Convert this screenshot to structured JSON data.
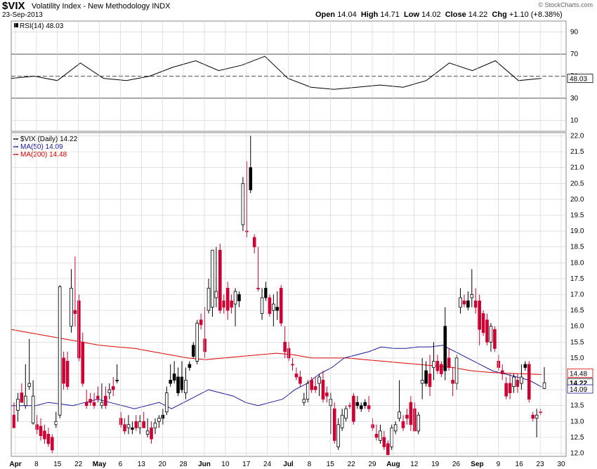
{
  "header": {
    "symbol": "$VIX",
    "name": "Volatility Index - New Methodology",
    "exchange": "INDX",
    "date": "23-Sep-2013",
    "credit": "© StockCharts.com",
    "open_label": "Open",
    "open": "14.04",
    "high_label": "High",
    "high": "14.71",
    "low_label": "Low",
    "low": "14.02",
    "close_label": "Close",
    "close": "14.22",
    "chg_label": "Chg",
    "chg": "+1.10 (+8.38%)"
  },
  "colors": {
    "up": "#ffffff",
    "down": "#cc0033",
    "black": "#000000",
    "ma50": "#1a1a99",
    "ma200": "#dd0000",
    "grid": "#cfcfcf",
    "ob_line": "#555555"
  },
  "chart_data": [
    {
      "type": "line",
      "title": "RSI(14) 48.03",
      "y_ticks": [
        10,
        30,
        50,
        70,
        90
      ],
      "ylim": [
        0,
        100
      ],
      "reference_lines": [
        30,
        50,
        70
      ],
      "last_value_label": "48.03",
      "x": [
        "2013-04-01",
        "2013-04-08",
        "2013-04-15",
        "2013-04-22",
        "2013-05-06",
        "2013-05-13",
        "2013-05-20",
        "2013-05-28",
        "2013-06-03",
        "2013-06-10",
        "2013-06-17",
        "2013-06-24",
        "2013-07-08",
        "2013-07-15",
        "2013-07-22",
        "2013-07-29",
        "2013-08-05",
        "2013-08-12",
        "2013-08-19",
        "2013-08-26",
        "2013-09-03",
        "2013-09-09",
        "2013-09-16",
        "2013-09-23"
      ],
      "series": [
        {
          "values": [
            48,
            50,
            46,
            62,
            48,
            46,
            50,
            58,
            64,
            55,
            60,
            68,
            48,
            40,
            38,
            40,
            42,
            40,
            46,
            62,
            55,
            64,
            46,
            48
          ]
        }
      ]
    },
    {
      "type": "candlestick",
      "legend": [
        {
          "label": "$VIX (Daily) 14.22",
          "color": "#000000"
        },
        {
          "label": "MA(50) 14.09",
          "color": "#1a1a99"
        },
        {
          "label": "MA(200) 14.48",
          "color": "#dd0000"
        }
      ],
      "ylim": [
        11.9,
        22.1
      ],
      "y_ticks": [
        12.0,
        12.5,
        13.0,
        13.5,
        14.0,
        14.5,
        15.0,
        15.5,
        16.0,
        16.5,
        17.0,
        17.5,
        18.0,
        18.5,
        19.0,
        19.5,
        20.0,
        20.5,
        21.0,
        21.5,
        22.0
      ],
      "price_labels": [
        {
          "text": "14.48",
          "value": 14.48,
          "color": "#dd0000"
        },
        {
          "text": "14.22",
          "value": 14.22,
          "color": "#000000"
        },
        {
          "text": "14.09",
          "value": 14.09,
          "color": "#1a1a99"
        }
      ],
      "x_axis_labels": [
        "Apr",
        "8",
        "15",
        "22",
        "May",
        "6",
        "13",
        "20",
        "28",
        "Jun",
        "10",
        "17",
        "24",
        "Jul",
        "8",
        "15",
        "22",
        "29",
        "Aug",
        "12",
        "19",
        "26",
        "Sep",
        "9",
        "16",
        "23",
        "30"
      ],
      "x_axis_bold": [
        "Apr",
        "May",
        "Jun",
        "Jul",
        "Aug",
        "Sep"
      ],
      "ohlc": [
        [
          13.2,
          13.6,
          12.9,
          12.8,
          "d"
        ],
        [
          13.35,
          13.9,
          13.0,
          13.7,
          "u"
        ],
        [
          13.9,
          14.2,
          13.6,
          13.6,
          "d"
        ],
        [
          13.5,
          14.8,
          13.4,
          13.8,
          "u"
        ],
        [
          14.1,
          15.6,
          14.0,
          14.2,
          "u"
        ],
        [
          12.95,
          14.3,
          12.9,
          13.8,
          "u"
        ],
        [
          12.9,
          13.2,
          12.6,
          12.75,
          "d"
        ],
        [
          12.85,
          13.1,
          12.4,
          12.55,
          "d"
        ],
        [
          12.7,
          12.9,
          12.3,
          12.45,
          "d"
        ],
        [
          12.6,
          12.8,
          12.2,
          12.3,
          "d"
        ],
        [
          12.5,
          12.6,
          12.0,
          12.1,
          "d"
        ],
        [
          12.9,
          13.3,
          12.8,
          13.0,
          "u"
        ],
        [
          13.2,
          17.3,
          13.1,
          17.25,
          "u"
        ],
        [
          15.0,
          15.2,
          14.0,
          14.2,
          "d"
        ],
        [
          14.9,
          15.2,
          14.0,
          14.1,
          "d"
        ],
        [
          16.0,
          17.8,
          15.8,
          17.2,
          "u"
        ],
        [
          16.5,
          18.2,
          16.0,
          16.4,
          "d"
        ],
        [
          16.8,
          17.0,
          14.9,
          15.0,
          "d"
        ],
        [
          15.5,
          15.8,
          14.1,
          14.2,
          "d"
        ],
        [
          13.6,
          14.0,
          13.4,
          13.5,
          "d"
        ],
        [
          13.7,
          13.9,
          13.5,
          13.6,
          "d"
        ],
        [
          13.6,
          13.9,
          13.4,
          13.5,
          "d"
        ],
        [
          13.8,
          14.1,
          13.6,
          13.7,
          "d"
        ],
        [
          13.5,
          14.2,
          13.4,
          13.6,
          "u"
        ],
        [
          13.8,
          14.1,
          13.4,
          13.5,
          "d"
        ],
        [
          13.9,
          14.2,
          13.7,
          14.0,
          "u"
        ],
        [
          14.0,
          14.4,
          13.8,
          14.1,
          "d"
        ],
        [
          14.3,
          14.8,
          14.2,
          14.3,
          "b"
        ],
        [
          13.1,
          13.3,
          12.8,
          12.9,
          "d"
        ],
        [
          12.9,
          13.1,
          12.6,
          12.7,
          "d"
        ],
        [
          12.9,
          13.2,
          12.6,
          12.8,
          "u"
        ],
        [
          12.8,
          13.0,
          12.6,
          12.75,
          "b"
        ],
        [
          13.0,
          13.2,
          12.7,
          12.8,
          "d"
        ],
        [
          12.8,
          13.2,
          12.6,
          13.0,
          "u"
        ],
        [
          13.0,
          13.3,
          12.8,
          12.8,
          "d"
        ],
        [
          12.6,
          13.1,
          12.5,
          12.7,
          "u"
        ],
        [
          12.8,
          13.0,
          12.3,
          12.45,
          "d"
        ],
        [
          12.8,
          13.1,
          12.6,
          12.95,
          "u"
        ],
        [
          13.0,
          13.2,
          12.8,
          13.1,
          "u"
        ],
        [
          13.1,
          13.4,
          12.9,
          13.2,
          "b"
        ],
        [
          13.3,
          14.1,
          13.2,
          13.9,
          "u"
        ],
        [
          14.3,
          14.8,
          14.1,
          14.2,
          "b"
        ],
        [
          14.5,
          14.9,
          14.2,
          14.3,
          "b"
        ],
        [
          14.4,
          14.7,
          13.8,
          13.9,
          "b"
        ],
        [
          14.4,
          14.9,
          13.9,
          14.0,
          "b"
        ],
        [
          14.3,
          14.7,
          13.7,
          13.9,
          "u"
        ],
        [
          14.8,
          14.9,
          14.6,
          14.7,
          "b"
        ],
        [
          15.4,
          15.5,
          15.0,
          15.05,
          "b"
        ],
        [
          14.9,
          16.2,
          14.8,
          16.1,
          "u"
        ],
        [
          16.2,
          16.4,
          15.9,
          16.05,
          "d"
        ],
        [
          15.6,
          16.6,
          15.0,
          15.2,
          "d"
        ],
        [
          16.5,
          17.5,
          16.4,
          17.2,
          "u"
        ],
        [
          16.6,
          18.4,
          16.3,
          18.4,
          "u"
        ],
        [
          16.9,
          18.5,
          16.6,
          17.1,
          "u"
        ],
        [
          18.4,
          18.6,
          16.4,
          16.5,
          "d"
        ],
        [
          16.8,
          17.0,
          16.4,
          16.6,
          "d"
        ],
        [
          17.2,
          17.4,
          16.2,
          16.5,
          "d"
        ],
        [
          16.8,
          17.0,
          16.4,
          16.6,
          "d"
        ],
        [
          17.1,
          17.2,
          16.0,
          16.7,
          "u"
        ],
        [
          17.0,
          17.1,
          16.6,
          16.8,
          "b"
        ],
        [
          19.2,
          20.7,
          19.0,
          20.5,
          "u"
        ],
        [
          19.0,
          21.2,
          18.8,
          19.0,
          "d"
        ],
        [
          21.0,
          22.0,
          20.2,
          20.3,
          "b"
        ],
        [
          18.8,
          18.9,
          18.3,
          18.5,
          "d"
        ],
        [
          17.2,
          18.5,
          17.1,
          17.2,
          "d"
        ],
        [
          16.4,
          17.2,
          16.2,
          16.9,
          "u"
        ],
        [
          17.2,
          17.4,
          16.8,
          16.9,
          "b"
        ],
        [
          16.9,
          17.0,
          16.3,
          16.4,
          "d"
        ],
        [
          16.5,
          17.0,
          16.0,
          16.7,
          "u"
        ],
        [
          16.6,
          17.1,
          16.2,
          16.5,
          "b"
        ],
        [
          17.2,
          17.3,
          16.0,
          16.1,
          "d"
        ],
        [
          15.5,
          16.0,
          15.0,
          15.2,
          "d"
        ],
        [
          15.3,
          15.5,
          14.9,
          15.0,
          "d"
        ],
        [
          14.8,
          15.0,
          14.6,
          14.8,
          "d"
        ],
        [
          14.5,
          14.7,
          14.3,
          14.4,
          "d"
        ],
        [
          14.4,
          14.6,
          14.1,
          14.2,
          "d"
        ],
        [
          13.7,
          13.9,
          13.5,
          13.6,
          "u"
        ],
        [
          13.7,
          14.3,
          13.6,
          14.2,
          "u"
        ],
        [
          14.3,
          14.4,
          13.9,
          14.0,
          "d"
        ],
        [
          14.1,
          14.4,
          13.9,
          14.0,
          "d"
        ],
        [
          14.2,
          14.5,
          13.8,
          14.4,
          "u"
        ],
        [
          14.3,
          14.6,
          13.6,
          13.7,
          "d"
        ],
        [
          13.9,
          14.1,
          13.6,
          13.8,
          "d"
        ],
        [
          13.7,
          13.9,
          12.6,
          13.5,
          "u"
        ],
        [
          13.4,
          13.6,
          12.3,
          12.4,
          "d"
        ],
        [
          12.9,
          13.1,
          12.1,
          12.2,
          "u"
        ],
        [
          12.8,
          13.4,
          12.7,
          13.2,
          "u"
        ],
        [
          13.1,
          13.5,
          13.0,
          13.4,
          "u"
        ],
        [
          13.5,
          13.6,
          13.4,
          13.5,
          "d"
        ],
        [
          13.8,
          13.9,
          12.9,
          13.0,
          "d"
        ],
        [
          13.6,
          13.8,
          13.4,
          13.5,
          "b"
        ],
        [
          13.4,
          13.6,
          13.3,
          13.5,
          "b"
        ],
        [
          13.5,
          13.7,
          13.4,
          13.6,
          "b"
        ],
        [
          13.4,
          13.8,
          13.3,
          13.5,
          "d"
        ],
        [
          12.9,
          13.1,
          12.7,
          12.8,
          "d"
        ],
        [
          12.6,
          12.9,
          12.4,
          12.5,
          "d"
        ],
        [
          12.4,
          12.9,
          12.3,
          12.7,
          "u"
        ],
        [
          12.5,
          12.7,
          12.1,
          12.2,
          "d"
        ],
        [
          12.3,
          12.4,
          11.95,
          11.95,
          "d"
        ],
        [
          12.2,
          12.9,
          12.1,
          12.8,
          "u"
        ],
        [
          12.7,
          13.0,
          12.6,
          12.9,
          "u"
        ],
        [
          13.1,
          14.3,
          13.0,
          13.3,
          "u"
        ],
        [
          13.0,
          13.2,
          12.7,
          12.8,
          "d"
        ],
        [
          13.2,
          13.4,
          12.9,
          13.1,
          "d"
        ],
        [
          13.6,
          13.8,
          12.7,
          12.9,
          "d"
        ],
        [
          13.4,
          13.6,
          12.7,
          12.7,
          "d"
        ],
        [
          12.7,
          13.3,
          12.6,
          13.2,
          "u"
        ],
        [
          14.2,
          15.0,
          13.7,
          14.3,
          "u"
        ],
        [
          14.6,
          14.9,
          14.1,
          14.2,
          "b"
        ],
        [
          14.5,
          15.1,
          13.8,
          14.1,
          "d"
        ],
        [
          14.7,
          15.5,
          14.3,
          14.9,
          "u"
        ],
        [
          14.9,
          15.1,
          14.5,
          14.6,
          "d"
        ],
        [
          14.8,
          14.9,
          14.4,
          14.5,
          "d"
        ],
        [
          14.6,
          16.6,
          14.3,
          16.0,
          "b"
        ],
        [
          15.0,
          15.3,
          14.6,
          14.7,
          "d"
        ],
        [
          14.3,
          14.7,
          13.8,
          14.2,
          "d"
        ],
        [
          14.2,
          15.1,
          14.0,
          15.0,
          "u"
        ],
        [
          16.6,
          17.2,
          16.4,
          16.9,
          "u"
        ],
        [
          16.8,
          17.0,
          16.6,
          16.7,
          "d"
        ],
        [
          16.8,
          17.1,
          16.5,
          16.6,
          "b"
        ],
        [
          17.0,
          17.8,
          16.6,
          16.9,
          "u"
        ],
        [
          16.8,
          17.2,
          16.4,
          16.6,
          "d"
        ],
        [
          16.8,
          17.0,
          15.4,
          15.9,
          "d"
        ],
        [
          16.4,
          16.5,
          15.7,
          15.8,
          "d"
        ],
        [
          16.2,
          16.4,
          15.4,
          15.5,
          "d"
        ],
        [
          15.5,
          16.1,
          15.2,
          16.0,
          "u"
        ],
        [
          15.9,
          16.0,
          15.2,
          15.3,
          "d"
        ],
        [
          14.9,
          15.1,
          14.6,
          14.7,
          "d"
        ],
        [
          14.5,
          14.8,
          14.3,
          14.6,
          "d"
        ],
        [
          14.2,
          14.4,
          13.7,
          13.8,
          "d"
        ],
        [
          14.2,
          14.5,
          13.7,
          13.9,
          "d"
        ],
        [
          14.1,
          14.5,
          13.9,
          14.4,
          "u"
        ],
        [
          14.3,
          14.5,
          13.9,
          14.1,
          "d"
        ],
        [
          14.2,
          14.8,
          14.0,
          14.4,
          "u"
        ],
        [
          14.8,
          14.9,
          14.6,
          14.7,
          "b"
        ],
        [
          14.8,
          14.9,
          13.6,
          13.7,
          "d"
        ],
        [
          13.2,
          13.3,
          13.0,
          13.1,
          "d"
        ],
        [
          13.1,
          13.4,
          12.5,
          13.2,
          "u"
        ],
        [
          13.3,
          13.4,
          13.2,
          13.3,
          "d"
        ],
        [
          14.04,
          14.71,
          14.02,
          14.22,
          "u"
        ]
      ],
      "ma50": [
        13.5,
        13.5,
        13.5,
        13.6,
        13.55,
        13.5,
        13.6,
        13.7,
        13.6,
        13.5,
        13.4,
        13.5,
        13.6,
        13.4,
        13.6,
        13.8,
        14.0,
        13.9,
        13.8,
        13.6,
        13.5,
        13.6,
        13.7,
        14.0,
        14.2,
        14.5,
        14.7,
        15.0,
        15.1,
        15.2,
        15.35,
        15.3,
        15.3,
        15.35,
        15.35,
        15.4,
        15.2,
        15.0,
        14.8,
        14.6,
        14.5,
        14.4,
        14.3,
        14.09
      ],
      "ma200": [
        15.9,
        15.8,
        15.7,
        15.6,
        15.5,
        15.4,
        15.35,
        15.3,
        15.2,
        15.1,
        15.0,
        14.95,
        15.0,
        15.05,
        15.1,
        15.15,
        15.1,
        15.0,
        15.0,
        15.0,
        14.95,
        14.9,
        14.85,
        14.8,
        14.75,
        14.7,
        14.6,
        14.55,
        14.52,
        14.5,
        14.48
      ]
    }
  ]
}
